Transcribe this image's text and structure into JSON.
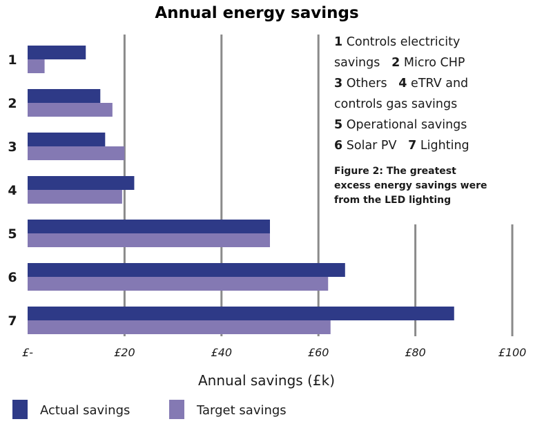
{
  "chart_data": {
    "type": "bar",
    "orientation": "horizontal",
    "title": "Annual energy savings",
    "xlabel": "Annual savings (£k)",
    "ylabel": "",
    "categories": [
      "1",
      "2",
      "3",
      "4",
      "5",
      "6",
      "7"
    ],
    "series": [
      {
        "name": "Actual savings",
        "color": "#2e3a87",
        "values": [
          12,
          15,
          16,
          22,
          50,
          65.5,
          88
        ]
      },
      {
        "name": "Target savings",
        "color": "#8479b3",
        "values": [
          3.5,
          17.5,
          20,
          19.5,
          50,
          62,
          62.5
        ]
      }
    ],
    "xlim": [
      0,
      100
    ],
    "xticks": [
      0,
      20,
      40,
      60,
      80,
      100
    ],
    "xtick_labels": [
      "£-",
      "£20",
      "£40",
      "£60",
      "£80",
      "£100"
    ],
    "grid": "vertical",
    "legend_position": "bottom-left",
    "key": [
      {
        "num": "1",
        "text": "Controls electricity"
      },
      {
        "num": "",
        "text": "savings"
      },
      {
        "num": "2",
        "text": "Micro CHP"
      },
      {
        "num": "3",
        "text": "Others"
      },
      {
        "num": "4",
        "text": "eTRV and"
      },
      {
        "num": "",
        "text": "controls gas savings"
      },
      {
        "num": "5",
        "text": "Operational savings"
      },
      {
        "num": "6",
        "text": "Solar PV"
      },
      {
        "num": "7",
        "text": "Lighting"
      }
    ],
    "caption": "Figure 2: The greatest excess energy savings were from the LED lighting",
    "caption_lines": [
      "Figure 2: The greatest",
      "excess energy savings were",
      "from the LED lighting"
    ]
  }
}
